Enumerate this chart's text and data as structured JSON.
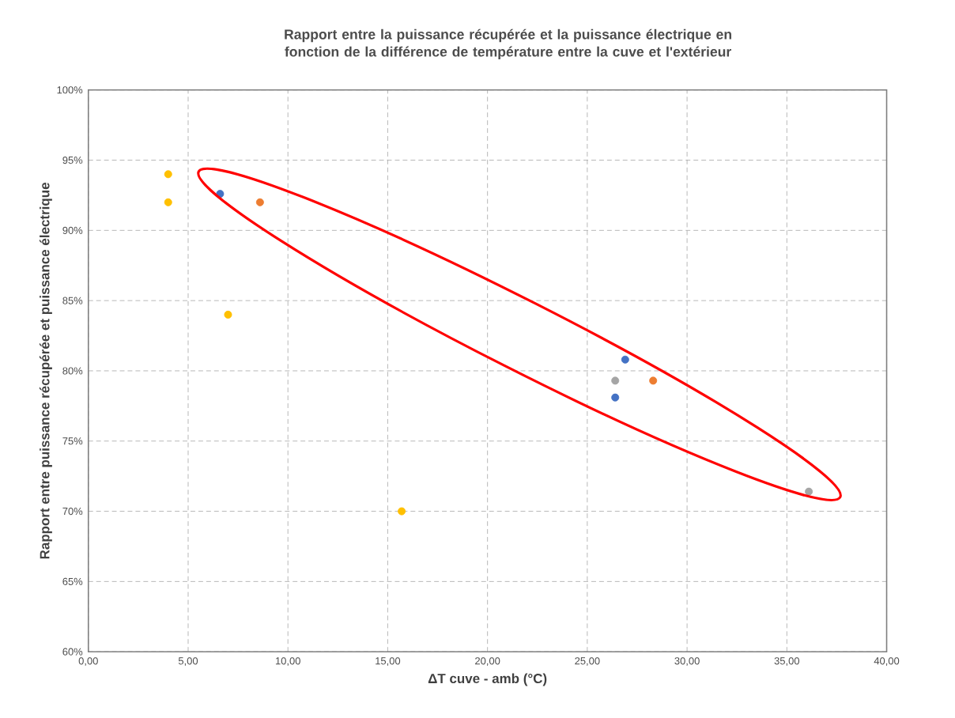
{
  "chart_data": {
    "type": "scatter",
    "title": "Rapport entre la puissance récupérée et la puissance  électrique en fonction de la différence de température entre la cuve et l'extérieur",
    "xlabel": "ΔT cuve - amb (°C)",
    "ylabel": "Rapport entre puissance récupérée et puissance électrique",
    "xlim": [
      0,
      40
    ],
    "ylim": [
      60,
      100
    ],
    "xticks": [
      {
        "value": 0,
        "label": "0,00"
      },
      {
        "value": 5,
        "label": "5,00"
      },
      {
        "value": 10,
        "label": "10,00"
      },
      {
        "value": 15,
        "label": "15,00"
      },
      {
        "value": 20,
        "label": "20,00"
      },
      {
        "value": 25,
        "label": "25,00"
      },
      {
        "value": 30,
        "label": "30,00"
      },
      {
        "value": 35,
        "label": "35,00"
      },
      {
        "value": 40,
        "label": "40,00"
      }
    ],
    "yticks": [
      {
        "value": 60,
        "label": "60%"
      },
      {
        "value": 65,
        "label": "65%"
      },
      {
        "value": 70,
        "label": "70%"
      },
      {
        "value": 75,
        "label": "75%"
      },
      {
        "value": 80,
        "label": "80%"
      },
      {
        "value": 85,
        "label": "85%"
      },
      {
        "value": 90,
        "label": "90%"
      },
      {
        "value": 95,
        "label": "95%"
      },
      {
        "value": 100,
        "label": "100%"
      }
    ],
    "grid": true,
    "marker": "circle",
    "series": [
      {
        "color": "#4472c4",
        "x": [
          6.6,
          26.9,
          26.4
        ],
        "values": [
          92.6,
          80.8,
          78.1
        ]
      },
      {
        "color": "#ed7d31",
        "x": [
          8.6,
          28.3
        ],
        "values": [
          92.0,
          79.3
        ]
      },
      {
        "color": "#a5a5a5",
        "x": [
          26.4,
          36.1
        ],
        "values": [
          79.3,
          71.4
        ]
      },
      {
        "color": "#ffc000",
        "x": [
          4.0,
          4.0,
          7.0,
          15.7
        ],
        "values": [
          94.0,
          92.0,
          84.0,
          70.0
        ]
      }
    ]
  }
}
